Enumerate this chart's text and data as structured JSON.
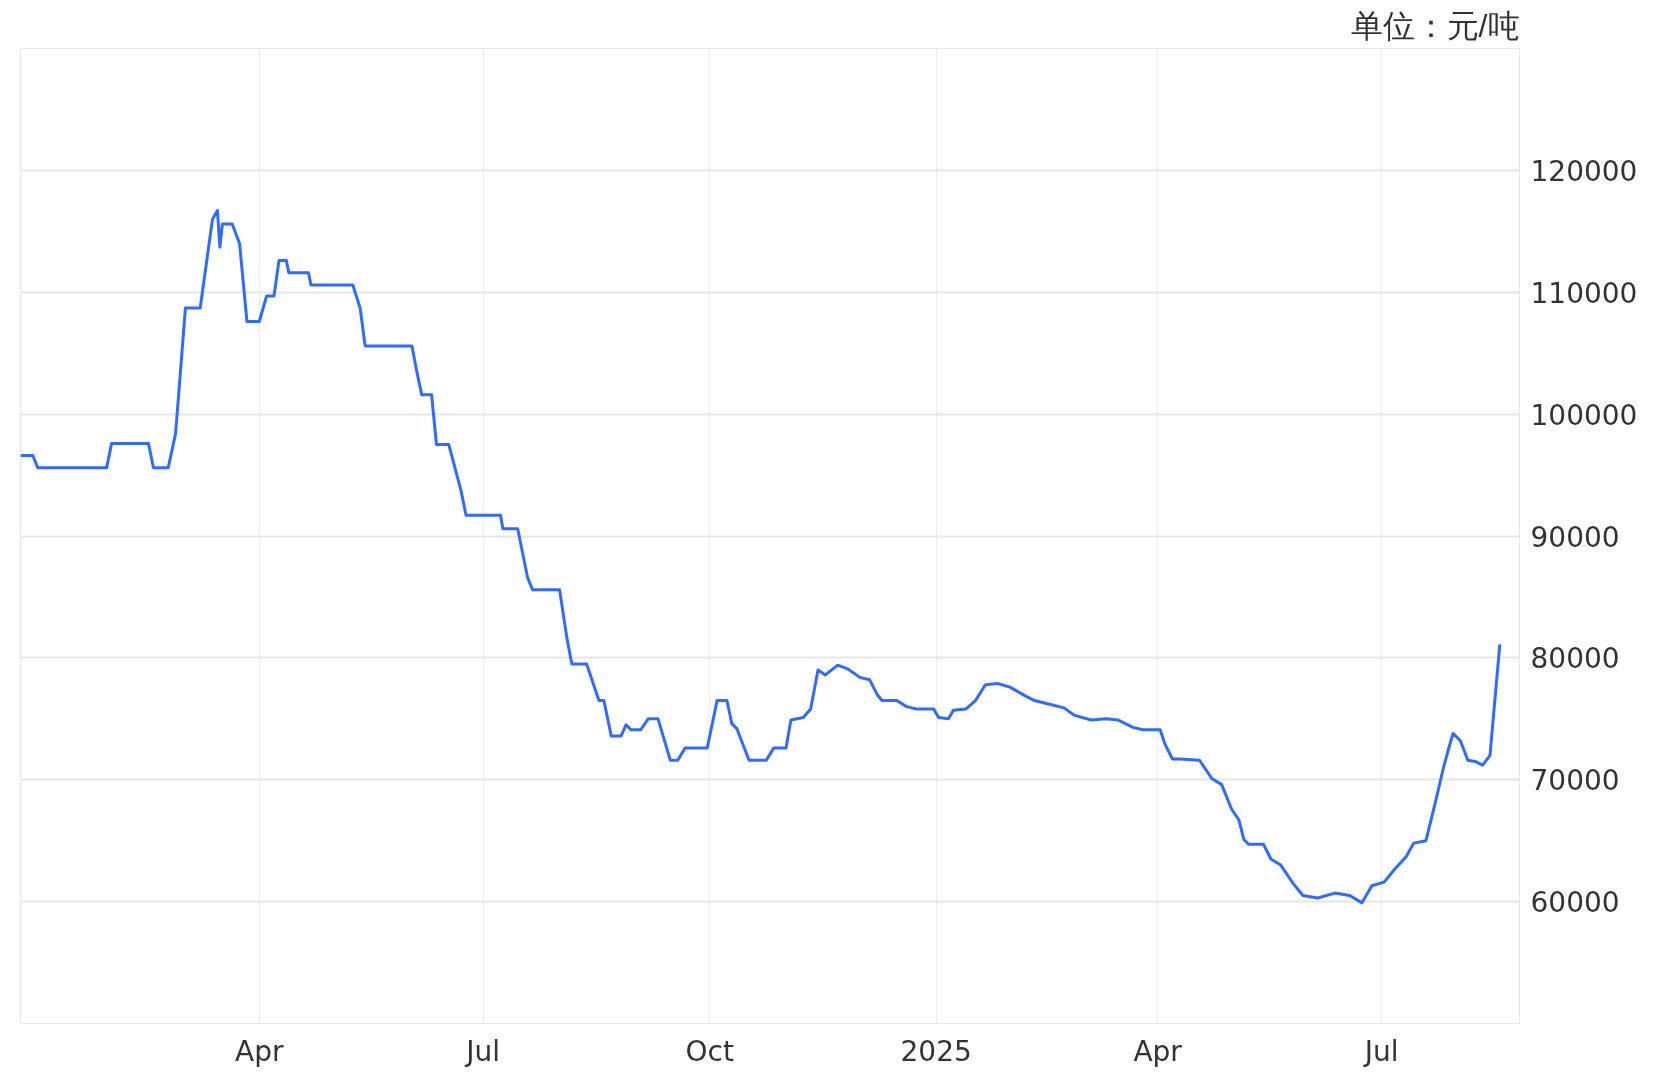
{
  "chart_data": {
    "type": "line",
    "title": "单位：元/吨",
    "x": [
      "2023-12-26",
      "2023-12-31",
      "2024-01-02",
      "2024-01-30",
      "2024-02-01",
      "2024-02-16",
      "2024-02-18",
      "2024-02-24",
      "2024-02-27",
      "2024-03-02",
      "2024-03-08",
      "2024-03-13",
      "2024-03-15",
      "2024-03-16",
      "2024-03-17",
      "2024-03-21",
      "2024-03-24",
      "2024-03-27",
      "2024-04-01",
      "2024-04-04",
      "2024-04-07",
      "2024-04-09",
      "2024-04-12",
      "2024-04-13",
      "2024-04-21",
      "2024-04-22",
      "2024-05-09",
      "2024-05-12",
      "2024-05-14",
      "2024-06-02",
      "2024-06-04",
      "2024-06-06",
      "2024-06-10",
      "2024-06-12",
      "2024-06-17",
      "2024-06-22",
      "2024-06-24",
      "2024-07-08",
      "2024-07-09",
      "2024-07-15",
      "2024-07-19",
      "2024-07-21",
      "2024-08-01",
      "2024-08-04",
      "2024-08-06",
      "2024-08-12",
      "2024-08-17",
      "2024-08-19",
      "2024-08-22",
      "2024-08-26",
      "2024-08-28",
      "2024-08-30",
      "2024-09-03",
      "2024-09-06",
      "2024-09-10",
      "2024-09-15",
      "2024-09-18",
      "2024-09-21",
      "2024-09-30",
      "2024-10-04",
      "2024-10-08",
      "2024-10-10",
      "2024-10-12",
      "2024-10-17",
      "2024-10-24",
      "2024-10-27",
      "2024-11-01",
      "2024-11-03",
      "2024-11-08",
      "2024-11-11",
      "2024-11-14",
      "2024-11-17",
      "2024-11-22",
      "2024-11-26",
      "2024-12-01",
      "2024-12-05",
      "2024-12-08",
      "2024-12-10",
      "2024-12-16",
      "2024-12-20",
      "2024-12-24",
      "2024-12-31",
      "2025-01-02",
      "2025-01-06",
      "2025-01-08",
      "2025-01-13",
      "2025-01-17",
      "2025-01-21",
      "2025-01-26",
      "2025-01-31",
      "2025-02-06",
      "2025-02-10",
      "2025-02-14",
      "2025-02-22",
      "2025-02-26",
      "2025-03-05",
      "2025-03-11",
      "2025-03-16",
      "2025-03-22",
      "2025-03-26",
      "2025-04-02",
      "2025-04-04",
      "2025-04-07",
      "2025-04-10",
      "2025-04-18",
      "2025-04-23",
      "2025-04-27",
      "2025-05-01",
      "2025-05-04",
      "2025-05-06",
      "2025-05-08",
      "2025-05-14",
      "2025-05-17",
      "2025-05-21",
      "2025-05-26",
      "2025-05-30",
      "2025-06-05",
      "2025-06-12",
      "2025-06-18",
      "2025-06-23",
      "2025-06-27",
      "2025-07-02",
      "2025-07-06",
      "2025-07-11",
      "2025-07-14",
      "2025-07-19",
      "2025-07-23",
      "2025-07-26",
      "2025-07-28",
      "2025-07-30",
      "2025-08-02",
      "2025-08-05",
      "2025-08-08",
      "2025-08-11",
      "2025-08-14",
      "2025-08-18"
    ],
    "series": [
      {
        "color": "#2f6bff",
        "values": [
          96600,
          96600,
          95600,
          95600,
          97600,
          97600,
          95600,
          95600,
          98400,
          108700,
          108700,
          116000,
          116700,
          113700,
          115600,
          115600,
          114000,
          107600,
          107600,
          109700,
          109700,
          112600,
          112600,
          111600,
          111600,
          110600,
          110600,
          108700,
          105600,
          105600,
          103500,
          101600,
          101600,
          97500,
          97500,
          93700,
          91700,
          91700,
          90600,
          90600,
          86600,
          85600,
          85600,
          81600,
          79500,
          79500,
          76500,
          76500,
          73600,
          73600,
          74500,
          74100,
          74100,
          75000,
          75000,
          71600,
          71600,
          72600,
          72600,
          76500,
          76500,
          74600,
          74200,
          71600,
          71600,
          72600,
          72600,
          74900,
          75100,
          75800,
          79000,
          78600,
          79400,
          79100,
          78400,
          78200,
          77000,
          76500,
          76500,
          76000,
          75800,
          75800,
          75100,
          75000,
          75700,
          75800,
          76500,
          77800,
          77900,
          77600,
          76900,
          76500,
          76300,
          75900,
          75300,
          74900,
          75000,
          74900,
          74300,
          74100,
          74100,
          72900,
          71700,
          71700,
          71600,
          70100,
          69600,
          67600,
          66700,
          65100,
          64700,
          64700,
          63500,
          63000,
          61500,
          60500,
          60300,
          60700,
          60500,
          59900,
          61300,
          61600,
          62600,
          63700,
          64800,
          65000,
          68300,
          70900,
          72400,
          73800,
          73200,
          71600,
          71500,
          71200,
          72000,
          81100
        ]
      }
    ],
    "xlim": [
      "2023-12-26",
      "2025-08-26"
    ],
    "xticks": [
      {
        "value": "2024-04-01",
        "label": "Apr"
      },
      {
        "value": "2024-07-01",
        "label": "Jul"
      },
      {
        "value": "2024-10-01",
        "label": "Oct"
      },
      {
        "value": "2025-01-01",
        "label": "2025"
      },
      {
        "value": "2025-04-01",
        "label": "Apr"
      },
      {
        "value": "2025-07-01",
        "label": "Jul"
      }
    ],
    "ylim": [
      50000,
      130000
    ],
    "yticks": [
      60000,
      70000,
      80000,
      90000,
      100000,
      110000,
      120000
    ],
    "grid": true,
    "line_style": "solid",
    "marker": "none"
  }
}
